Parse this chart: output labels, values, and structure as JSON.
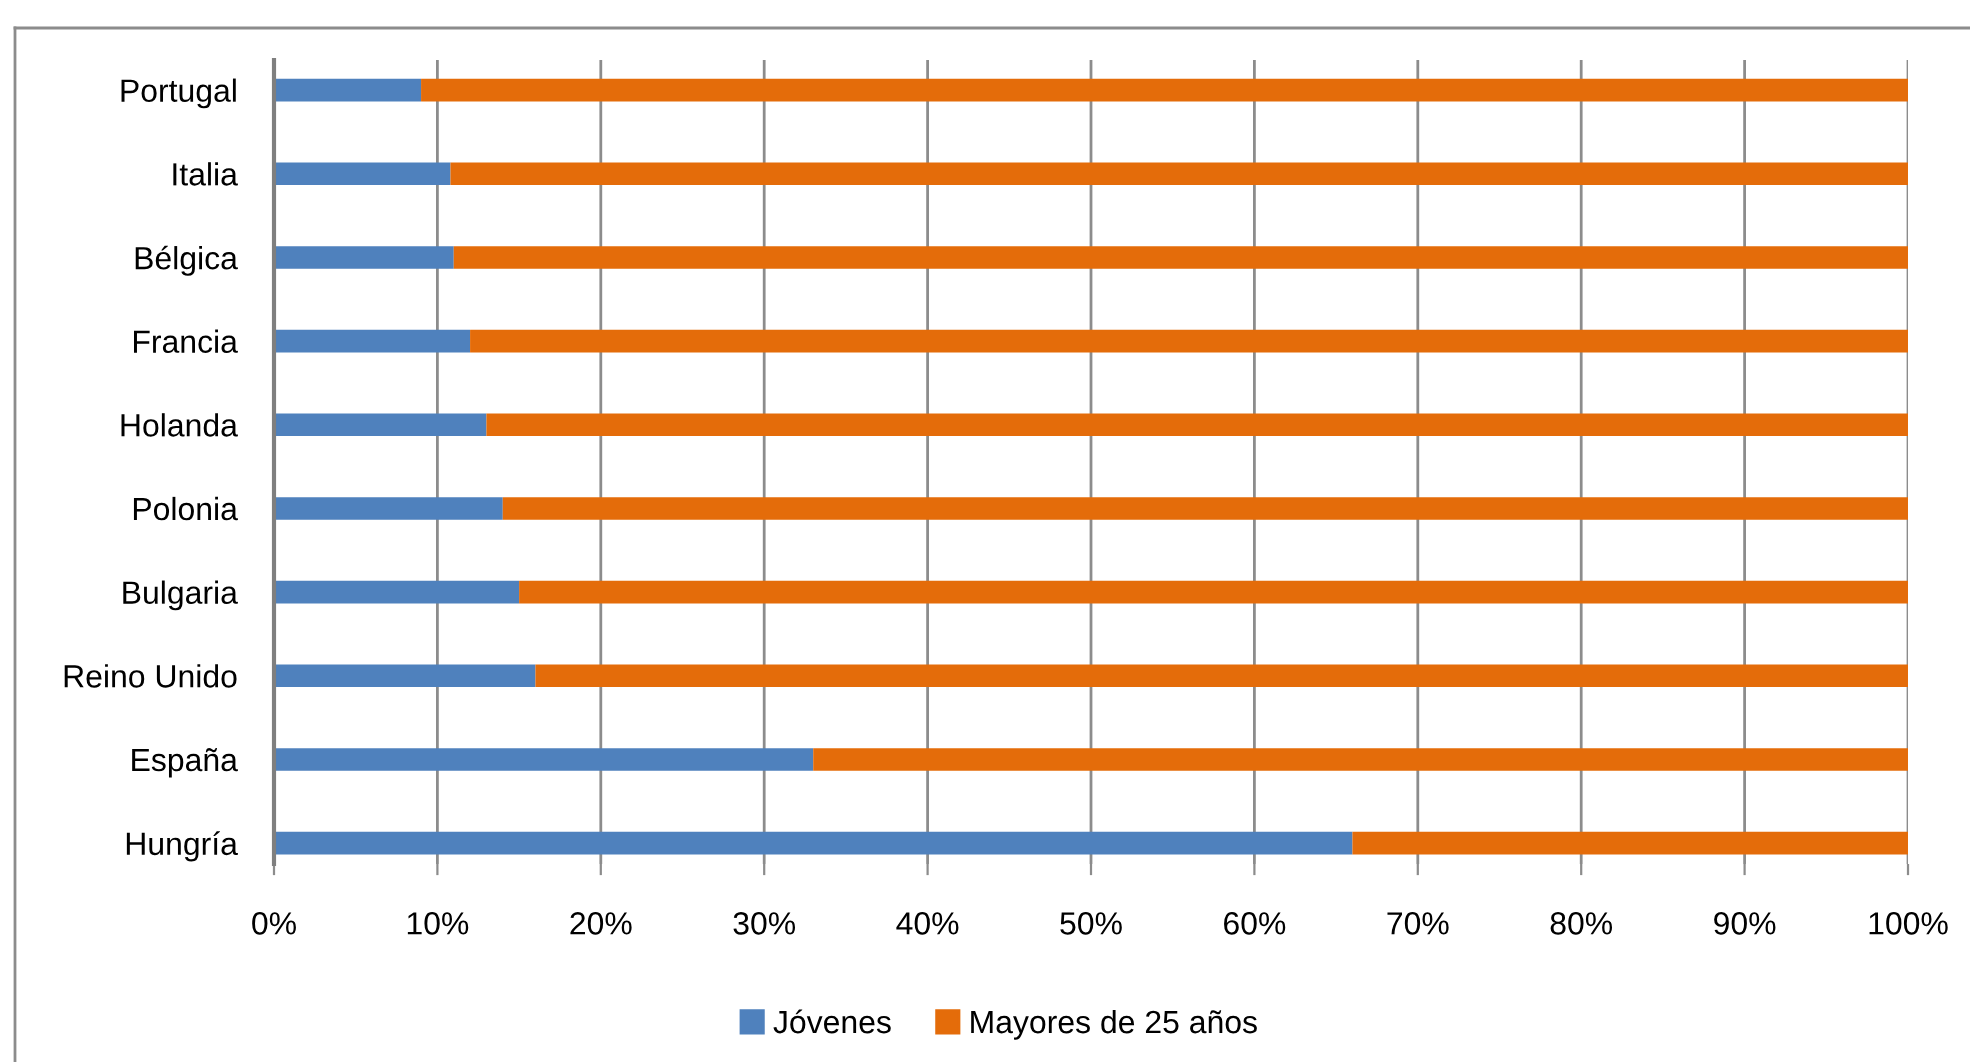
{
  "chart_data": {
    "type": "bar",
    "orientation": "horizontal",
    "stacked": true,
    "categories": [
      "Portugal",
      "Italia",
      "Bélgica",
      "Francia",
      "Holanda",
      "Polonia",
      "Bulgaria",
      "Reino Unido",
      "España",
      "Hungría"
    ],
    "series": [
      {
        "name": "Jóvenes",
        "color": "#4f81bd",
        "values": [
          9,
          10.8,
          11,
          12,
          13,
          14,
          15,
          16,
          33,
          66
        ]
      },
      {
        "name": "Mayores de 25 años",
        "color": "#e46c0a",
        "values": [
          91,
          89.2,
          89,
          88,
          87,
          86,
          85,
          84,
          67,
          34
        ]
      }
    ],
    "xlim": [
      0,
      100
    ],
    "xticks": [
      {
        "value": 0,
        "label": "0%"
      },
      {
        "value": 10,
        "label": "10%"
      },
      {
        "value": 20,
        "label": "20%"
      },
      {
        "value": 30,
        "label": "30%"
      },
      {
        "value": 40,
        "label": "40%"
      },
      {
        "value": 50,
        "label": "50%"
      },
      {
        "value": 60,
        "label": "60%"
      },
      {
        "value": 70,
        "label": "70%"
      },
      {
        "value": 80,
        "label": "80%"
      },
      {
        "value": 90,
        "label": "90%"
      },
      {
        "value": 100,
        "label": "100%"
      }
    ],
    "grid": "x",
    "legend": "bottom"
  }
}
